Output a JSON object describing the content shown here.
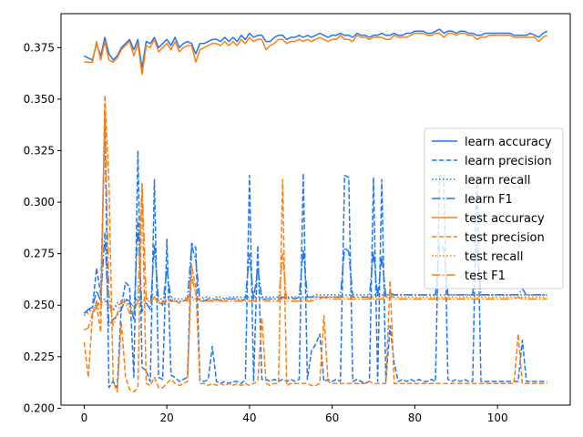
{
  "chart_data": {
    "type": "line",
    "title": "",
    "xlabel": "",
    "ylabel": "",
    "xlim": [
      -5.6,
      117.6
    ],
    "ylim": [
      0.2015,
      0.3915
    ],
    "x_ticks": [
      0,
      20,
      40,
      60,
      80,
      100
    ],
    "y_ticks": [
      0.2,
      0.225,
      0.25,
      0.275,
      0.3,
      0.325,
      0.35,
      0.375
    ],
    "x_tick_labels": [
      "0",
      "20",
      "40",
      "60",
      "80",
      "100"
    ],
    "y_tick_labels": [
      "0.200",
      "0.225",
      "0.250",
      "0.275",
      "0.300",
      "0.325",
      "0.350",
      "0.375"
    ],
    "grid": false,
    "legend_position": "center-right",
    "colors": {
      "learn": "#1f77f4",
      "test": "#ff7f0e"
    },
    "series": [
      {
        "name": "learn accuracy",
        "style": "solid",
        "color": "#1f77f4",
        "values": [
          0.371,
          0.37,
          0.369,
          0.377,
          0.371,
          0.38,
          0.372,
          0.369,
          0.371,
          0.375,
          0.377,
          0.379,
          0.374,
          0.379,
          0.365,
          0.378,
          0.377,
          0.38,
          0.375,
          0.377,
          0.379,
          0.376,
          0.38,
          0.375,
          0.377,
          0.378,
          0.377,
          0.372,
          0.377,
          0.377,
          0.378,
          0.379,
          0.379,
          0.378,
          0.38,
          0.378,
          0.38,
          0.378,
          0.381,
          0.379,
          0.382,
          0.38,
          0.381,
          0.381,
          0.378,
          0.378,
          0.38,
          0.381,
          0.381,
          0.379,
          0.38,
          0.38,
          0.381,
          0.38,
          0.381,
          0.38,
          0.381,
          0.382,
          0.381,
          0.38,
          0.381,
          0.381,
          0.382,
          0.381,
          0.381,
          0.38,
          0.382,
          0.381,
          0.381,
          0.38,
          0.381,
          0.381,
          0.382,
          0.381,
          0.381,
          0.382,
          0.381,
          0.381,
          0.382,
          0.382,
          0.383,
          0.383,
          0.383,
          0.382,
          0.382,
          0.383,
          0.384,
          0.382,
          0.383,
          0.383,
          0.382,
          0.383,
          0.383,
          0.382,
          0.382,
          0.381,
          0.381,
          0.382,
          0.382,
          0.382,
          0.382,
          0.382,
          0.382,
          0.382,
          0.381,
          0.381,
          0.381,
          0.381,
          0.382,
          0.381,
          0.38,
          0.382,
          0.383
        ]
      },
      {
        "name": "learn precision",
        "style": "dashed",
        "color": "#1f77f4",
        "values": [
          0.246,
          0.248,
          0.249,
          0.268,
          0.255,
          0.34,
          0.21,
          0.213,
          0.21,
          0.25,
          0.261,
          0.259,
          0.215,
          0.325,
          0.22,
          0.218,
          0.213,
          0.311,
          0.215,
          0.214,
          0.282,
          0.216,
          0.215,
          0.213,
          0.214,
          0.215,
          0.28,
          0.278,
          0.214,
          0.213,
          0.214,
          0.23,
          0.213,
          0.212,
          0.213,
          0.212,
          0.213,
          0.213,
          0.212,
          0.214,
          0.313,
          0.213,
          0.279,
          0.214,
          0.214,
          0.213,
          0.214,
          0.213,
          0.214,
          0.213,
          0.214,
          0.213,
          0.214,
          0.314,
          0.214,
          0.228,
          0.231,
          0.236,
          0.213,
          0.214,
          0.213,
          0.214,
          0.213,
          0.313,
          0.312,
          0.213,
          0.214,
          0.213,
          0.212,
          0.213,
          0.312,
          0.213,
          0.311,
          0.213,
          0.24,
          0.222,
          0.213,
          0.214,
          0.213,
          0.214,
          0.213,
          0.214,
          0.213,
          0.213,
          0.214,
          0.213,
          0.313,
          0.313,
          0.214,
          0.213,
          0.214,
          0.213,
          0.214,
          0.213,
          0.213,
          0.313,
          0.213,
          0.213,
          0.213,
          0.213,
          0.213,
          0.213,
          0.213,
          0.213,
          0.213,
          0.213,
          0.233,
          0.213,
          0.213,
          0.213,
          0.213,
          0.213,
          0.213
        ]
      },
      {
        "name": "learn recall",
        "style": "dotted",
        "color": "#1f77f4",
        "values": [
          0.245,
          0.247,
          0.249,
          0.25,
          0.252,
          0.253,
          0.25,
          0.248,
          0.251,
          0.252,
          0.253,
          0.25,
          0.251,
          0.254,
          0.252,
          0.253,
          0.253,
          0.254,
          0.253,
          0.253,
          0.254,
          0.254,
          0.253,
          0.253,
          0.253,
          0.254,
          0.254,
          0.253,
          0.253,
          0.254,
          0.254,
          0.253,
          0.254,
          0.254,
          0.253,
          0.254,
          0.254,
          0.254,
          0.254,
          0.254,
          0.254,
          0.254,
          0.254,
          0.254,
          0.254,
          0.254,
          0.254,
          0.254,
          0.254,
          0.254,
          0.254,
          0.254,
          0.254,
          0.254,
          0.254,
          0.254,
          0.255,
          0.255,
          0.255,
          0.255,
          0.255,
          0.255,
          0.255,
          0.255,
          0.255,
          0.255,
          0.255,
          0.255,
          0.255,
          0.255,
          0.255,
          0.255,
          0.255,
          0.255,
          0.255,
          0.255,
          0.255,
          0.255,
          0.255,
          0.255,
          0.255,
          0.255,
          0.255,
          0.255,
          0.255,
          0.255,
          0.255,
          0.255,
          0.255,
          0.255,
          0.255,
          0.255,
          0.255,
          0.255,
          0.255,
          0.255,
          0.255,
          0.255,
          0.255,
          0.255,
          0.255,
          0.255,
          0.255,
          0.255,
          0.255,
          0.255,
          0.255,
          0.255,
          0.255,
          0.255,
          0.255,
          0.255,
          0.255
        ]
      },
      {
        "name": "learn F1",
        "style": "dashdot",
        "color": "#1f77f4",
        "values": [
          0.246,
          0.248,
          0.249,
          0.257,
          0.252,
          0.285,
          0.24,
          0.243,
          0.245,
          0.248,
          0.253,
          0.252,
          0.243,
          0.29,
          0.247,
          0.251,
          0.248,
          0.279,
          0.252,
          0.25,
          0.268,
          0.252,
          0.252,
          0.252,
          0.252,
          0.253,
          0.279,
          0.272,
          0.252,
          0.252,
          0.253,
          0.252,
          0.253,
          0.252,
          0.253,
          0.253,
          0.253,
          0.253,
          0.252,
          0.253,
          0.275,
          0.253,
          0.268,
          0.253,
          0.253,
          0.253,
          0.253,
          0.253,
          0.254,
          0.253,
          0.254,
          0.253,
          0.254,
          0.277,
          0.254,
          0.254,
          0.254,
          0.254,
          0.254,
          0.254,
          0.254,
          0.254,
          0.254,
          0.278,
          0.276,
          0.254,
          0.254,
          0.254,
          0.254,
          0.254,
          0.276,
          0.254,
          0.274,
          0.254,
          0.256,
          0.255,
          0.255,
          0.255,
          0.255,
          0.255,
          0.255,
          0.255,
          0.255,
          0.255,
          0.255,
          0.255,
          0.28,
          0.277,
          0.255,
          0.255,
          0.255,
          0.255,
          0.255,
          0.255,
          0.255,
          0.279,
          0.255,
          0.255,
          0.255,
          0.255,
          0.255,
          0.255,
          0.255,
          0.255,
          0.255,
          0.255,
          0.258,
          0.255,
          0.255,
          0.255,
          0.255,
          0.255,
          0.255
        ]
      },
      {
        "name": "test accuracy",
        "style": "solid",
        "color": "#ff7f0e",
        "values": [
          0.368,
          0.368,
          0.368,
          0.378,
          0.369,
          0.378,
          0.369,
          0.368,
          0.37,
          0.374,
          0.376,
          0.378,
          0.371,
          0.377,
          0.362,
          0.376,
          0.375,
          0.379,
          0.373,
          0.375,
          0.377,
          0.374,
          0.378,
          0.373,
          0.375,
          0.376,
          0.376,
          0.368,
          0.374,
          0.375,
          0.376,
          0.377,
          0.377,
          0.376,
          0.378,
          0.376,
          0.378,
          0.376,
          0.379,
          0.377,
          0.38,
          0.378,
          0.379,
          0.379,
          0.374,
          0.376,
          0.377,
          0.379,
          0.379,
          0.377,
          0.378,
          0.378,
          0.379,
          0.378,
          0.379,
          0.378,
          0.379,
          0.38,
          0.379,
          0.378,
          0.379,
          0.379,
          0.381,
          0.379,
          0.379,
          0.378,
          0.381,
          0.38,
          0.38,
          0.379,
          0.38,
          0.38,
          0.38,
          0.379,
          0.379,
          0.381,
          0.38,
          0.38,
          0.38,
          0.381,
          0.382,
          0.382,
          0.382,
          0.381,
          0.381,
          0.382,
          0.382,
          0.38,
          0.382,
          0.382,
          0.381,
          0.382,
          0.382,
          0.381,
          0.381,
          0.379,
          0.38,
          0.38,
          0.381,
          0.381,
          0.381,
          0.381,
          0.381,
          0.381,
          0.38,
          0.38,
          0.38,
          0.38,
          0.38,
          0.38,
          0.378,
          0.38,
          0.381
        ]
      },
      {
        "name": "test precision",
        "style": "dashed",
        "color": "#ff7f0e",
        "values": [
          0.232,
          0.215,
          0.245,
          0.25,
          0.237,
          0.352,
          0.31,
          0.213,
          0.208,
          0.242,
          0.215,
          0.209,
          0.208,
          0.21,
          0.309,
          0.212,
          0.211,
          0.215,
          0.21,
          0.21,
          0.212,
          0.214,
          0.212,
          0.211,
          0.212,
          0.213,
          0.269,
          0.259,
          0.212,
          0.212,
          0.211,
          0.212,
          0.211,
          0.212,
          0.211,
          0.212,
          0.211,
          0.212,
          0.211,
          0.212,
          0.211,
          0.212,
          0.213,
          0.244,
          0.212,
          0.211,
          0.212,
          0.212,
          0.311,
          0.211,
          0.212,
          0.212,
          0.212,
          0.212,
          0.212,
          0.211,
          0.211,
          0.212,
          0.245,
          0.213,
          0.212,
          0.212,
          0.212,
          0.212,
          0.212,
          0.212,
          0.212,
          0.212,
          0.212,
          0.213,
          0.212,
          0.212,
          0.212,
          0.212,
          0.262,
          0.212,
          0.212,
          0.212,
          0.212,
          0.212,
          0.212,
          0.212,
          0.212,
          0.212,
          0.212,
          0.212,
          0.212,
          0.212,
          0.212,
          0.212,
          0.212,
          0.212,
          0.212,
          0.212,
          0.212,
          0.212,
          0.212,
          0.212,
          0.212,
          0.212,
          0.212,
          0.212,
          0.212,
          0.212,
          0.212,
          0.236,
          0.212,
          0.212,
          0.212,
          0.212,
          0.212,
          0.212,
          0.212
        ]
      },
      {
        "name": "test recall",
        "style": "dotted",
        "color": "#ff7f0e",
        "values": [
          0.245,
          0.246,
          0.248,
          0.249,
          0.251,
          0.252,
          0.249,
          0.247,
          0.25,
          0.251,
          0.252,
          0.249,
          0.25,
          0.253,
          0.251,
          0.252,
          0.252,
          0.253,
          0.252,
          0.252,
          0.253,
          0.253,
          0.252,
          0.252,
          0.252,
          0.253,
          0.253,
          0.252,
          0.252,
          0.253,
          0.253,
          0.252,
          0.253,
          0.253,
          0.252,
          0.253,
          0.253,
          0.253,
          0.253,
          0.253,
          0.253,
          0.253,
          0.253,
          0.253,
          0.253,
          0.253,
          0.253,
          0.253,
          0.253,
          0.253,
          0.253,
          0.253,
          0.253,
          0.253,
          0.253,
          0.253,
          0.254,
          0.254,
          0.254,
          0.254,
          0.254,
          0.254,
          0.254,
          0.254,
          0.254,
          0.254,
          0.254,
          0.254,
          0.254,
          0.254,
          0.254,
          0.254,
          0.254,
          0.254,
          0.254,
          0.254,
          0.254,
          0.254,
          0.254,
          0.254,
          0.254,
          0.254,
          0.254,
          0.254,
          0.254,
          0.254,
          0.254,
          0.254,
          0.254,
          0.254,
          0.254,
          0.254,
          0.254,
          0.254,
          0.254,
          0.254,
          0.254,
          0.254,
          0.254,
          0.254,
          0.254,
          0.254,
          0.254,
          0.254,
          0.254,
          0.254,
          0.254,
          0.254,
          0.254,
          0.254,
          0.254,
          0.254,
          0.254
        ]
      },
      {
        "name": "test F1",
        "style": "dashdot",
        "color": "#ff7f0e",
        "values": [
          0.238,
          0.239,
          0.246,
          0.252,
          0.245,
          0.345,
          0.255,
          0.24,
          0.246,
          0.252,
          0.251,
          0.246,
          0.247,
          0.252,
          0.309,
          0.253,
          0.251,
          0.254,
          0.251,
          0.251,
          0.252,
          0.252,
          0.252,
          0.251,
          0.252,
          0.252,
          0.264,
          0.255,
          0.252,
          0.252,
          0.252,
          0.252,
          0.252,
          0.252,
          0.252,
          0.252,
          0.252,
          0.252,
          0.252,
          0.252,
          0.252,
          0.252,
          0.252,
          0.253,
          0.252,
          0.252,
          0.252,
          0.252,
          0.275,
          0.252,
          0.252,
          0.252,
          0.252,
          0.252,
          0.252,
          0.252,
          0.253,
          0.253,
          0.254,
          0.253,
          0.253,
          0.253,
          0.253,
          0.253,
          0.253,
          0.253,
          0.253,
          0.253,
          0.253,
          0.253,
          0.253,
          0.253,
          0.253,
          0.253,
          0.256,
          0.253,
          0.253,
          0.253,
          0.253,
          0.253,
          0.253,
          0.253,
          0.253,
          0.253,
          0.253,
          0.253,
          0.253,
          0.253,
          0.253,
          0.253,
          0.253,
          0.253,
          0.253,
          0.253,
          0.253,
          0.253,
          0.253,
          0.253,
          0.253,
          0.253,
          0.253,
          0.253,
          0.253,
          0.253,
          0.253,
          0.254,
          0.253,
          0.253,
          0.253,
          0.253,
          0.253,
          0.253,
          0.253
        ]
      }
    ]
  }
}
